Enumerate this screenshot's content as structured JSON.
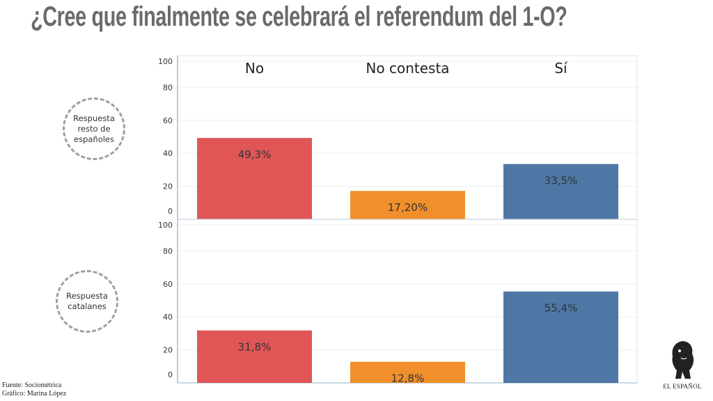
{
  "title": "¿Cree que finalmente se celebrará el referendum del 1-O?",
  "panels": [
    {
      "label": "Respuesta resto de españoles"
    },
    {
      "label": "Respuesta catalanes"
    }
  ],
  "source": "Fuente: Sociométrica",
  "credit": "Gráfico: Marina López",
  "logo": "EL ESPAÑOL",
  "colors": {
    "No": "#e05657",
    "No contesta": "#f08f2b",
    "Sí": "#4e77a5"
  },
  "chart_data": [
    {
      "type": "bar",
      "title": "",
      "categories": [
        "No",
        "No contesta",
        "Sí"
      ],
      "values": [
        49.3,
        17.2,
        33.5
      ],
      "data_labels": [
        "49,3%",
        "17,20%",
        "33,5%"
      ],
      "yticks": [
        0,
        20,
        40,
        60,
        80,
        100
      ],
      "ylim": [
        0,
        100
      ],
      "grid": true
    },
    {
      "type": "bar",
      "title": "",
      "categories": [
        "No",
        "No contesta",
        "Sí"
      ],
      "values": [
        31.8,
        12.8,
        55.4
      ],
      "data_labels": [
        "31,8%",
        "12,8%",
        "55,4%"
      ],
      "yticks": [
        0,
        20,
        40,
        60,
        80,
        100
      ],
      "ylim": [
        0,
        100
      ],
      "grid": true
    }
  ]
}
